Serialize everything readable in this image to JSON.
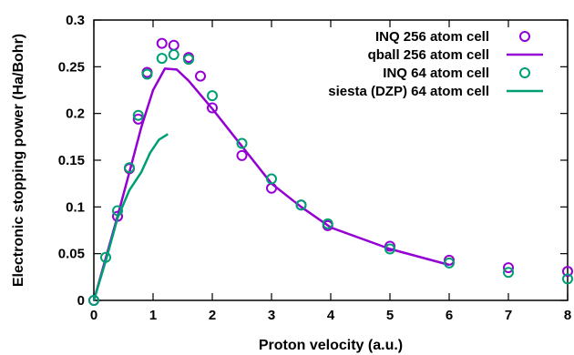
{
  "chart_data": {
    "type": "scatter",
    "xlabel": "Proton velocity (a.u.)",
    "ylabel": "Electronic stopping power (Ha/Bohr)",
    "xlim": [
      0,
      8
    ],
    "ylim": [
      0,
      0.3
    ],
    "xticks": [
      "0",
      "1",
      "2",
      "3",
      "4",
      "5",
      "6",
      "7",
      "8"
    ],
    "yticks": [
      "0",
      "0.05",
      "0.1",
      "0.15",
      "0.2",
      "0.25",
      "0.3"
    ],
    "grid": false,
    "legend_position": "top-right",
    "series": [
      {
        "name": "INQ 256 atom cell",
        "style": "open-circle",
        "color": "#9400d3",
        "x": [
          0,
          0.4,
          0.6,
          0.75,
          0.9,
          1.15,
          1.35,
          1.6,
          1.8,
          2.0,
          2.5,
          3.0,
          3.5,
          3.95,
          5.0,
          6.0,
          7.0,
          8.0
        ],
        "y": [
          0.0,
          0.09,
          0.141,
          0.194,
          0.244,
          0.275,
          0.273,
          0.26,
          0.24,
          0.206,
          0.155,
          0.12,
          0.102,
          0.08,
          0.058,
          0.043,
          0.035,
          0.031
        ]
      },
      {
        "name": "qball 256 atom cell",
        "style": "line",
        "color": "#9400d3",
        "x": [
          0,
          0.2,
          0.4,
          0.6,
          0.8,
          1.0,
          1.2,
          1.4,
          1.6,
          1.8,
          2.0,
          2.5,
          3.0,
          3.5,
          4.0,
          5.0,
          6.0
        ],
        "y": [
          0.0,
          0.045,
          0.09,
          0.137,
          0.185,
          0.225,
          0.248,
          0.247,
          0.235,
          0.22,
          0.205,
          0.165,
          0.125,
          0.1,
          0.078,
          0.055,
          0.038
        ]
      },
      {
        "name": "INQ 64 atom cell",
        "style": "open-circle",
        "color": "#009e73",
        "x": [
          0,
          0.2,
          0.4,
          0.6,
          0.75,
          0.9,
          1.15,
          1.35,
          1.6,
          2.0,
          2.5,
          3.0,
          3.5,
          3.95,
          5.0,
          6.0,
          7.0,
          8.0
        ],
        "y": [
          0.0,
          0.046,
          0.096,
          0.142,
          0.198,
          0.242,
          0.259,
          0.263,
          0.258,
          0.219,
          0.168,
          0.13,
          0.102,
          0.082,
          0.055,
          0.04,
          0.03,
          0.023
        ]
      },
      {
        "name": "siesta (DZP) 64 atom cell",
        "style": "line",
        "color": "#009e73",
        "x": [
          0,
          0.2,
          0.4,
          0.6,
          0.8,
          0.95,
          1.1,
          1.25
        ],
        "y": [
          0.0,
          0.042,
          0.088,
          0.118,
          0.137,
          0.158,
          0.172,
          0.178
        ]
      }
    ]
  }
}
